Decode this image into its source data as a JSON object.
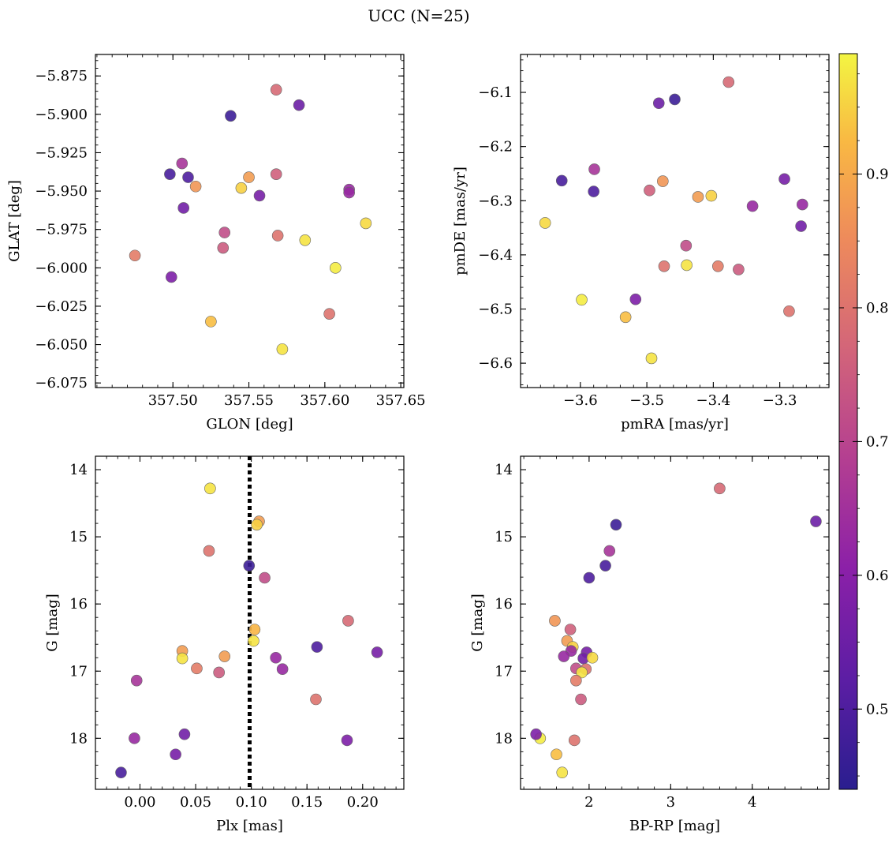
{
  "title": "UCC (N=25)",
  "colorbar": {
    "range": [
      0.44,
      0.99
    ],
    "ticks": [
      "0.5",
      "0.6",
      "0.7",
      "0.8",
      "0.9"
    ],
    "tick_values": [
      0.5,
      0.6,
      0.7,
      0.8,
      0.9
    ],
    "colormap": "plasma"
  },
  "chart_data": [
    {
      "type": "scatter",
      "xlabel": "GLON [deg]",
      "ylabel": "GLAT [deg]",
      "xlim": [
        357.449,
        357.652
      ],
      "ylim": [
        -6.078,
        -5.861
      ],
      "y_inverted": false,
      "xticks": [
        357.5,
        357.55,
        357.6,
        357.65
      ],
      "xtick_labels": [
        "357.50",
        "357.55",
        "357.60",
        "357.65"
      ],
      "yticks": [
        -5.875,
        -5.9,
        -5.925,
        -5.95,
        -5.975,
        -6.0,
        -6.025,
        -6.05,
        -6.075
      ],
      "ytick_labels": [
        "−5.875",
        "−5.900",
        "−5.925",
        "−5.950",
        "−5.975",
        "−6.000",
        "−6.025",
        "−6.050",
        "−6.075"
      ],
      "x": [
        357.568,
        357.583,
        357.538,
        357.506,
        357.498,
        357.51,
        357.515,
        357.568,
        357.55,
        357.545,
        357.557,
        357.616,
        357.616,
        357.507,
        357.627,
        357.534,
        357.569,
        357.587,
        357.475,
        357.533,
        357.607,
        357.499,
        357.603,
        357.525,
        357.572
      ],
      "y": [
        -5.884,
        -5.894,
        -5.901,
        -5.932,
        -5.939,
        -5.941,
        -5.947,
        -5.939,
        -5.941,
        -5.948,
        -5.953,
        -5.949,
        -5.951,
        -5.961,
        -5.971,
        -5.977,
        -5.979,
        -5.982,
        -5.992,
        -5.987,
        -6.0,
        -6.006,
        -6.03,
        -6.035,
        -6.053
      ]
    },
    {
      "type": "scatter",
      "xlabel": "pmRA [mas/yr]",
      "ylabel": "pmDE [mas/yr]",
      "xlim": [
        -3.69,
        -3.226
      ],
      "ylim": [
        -6.645,
        -6.03
      ],
      "y_inverted": false,
      "xticks": [
        -3.6,
        -3.5,
        -3.4,
        -3.3
      ],
      "xtick_labels": [
        "−3.6",
        "−3.5",
        "−3.4",
        "−3.3"
      ],
      "yticks": [
        -6.1,
        -6.2,
        -6.3,
        -6.4,
        -6.5,
        -6.6
      ],
      "ytick_labels": [
        "−6.1",
        "−6.2",
        "−6.3",
        "−6.4",
        "−6.5",
        "−6.6"
      ],
      "x": [
        -3.377,
        -3.482,
        -3.458,
        -3.579,
        -3.628,
        -3.58,
        -3.476,
        -3.496,
        -3.423,
        -3.403,
        -3.293,
        -3.341,
        -3.266,
        -3.268,
        -3.653,
        -3.441,
        -3.474,
        -3.44,
        -3.393,
        -3.362,
        -3.598,
        -3.517,
        -3.286,
        -3.532,
        -3.493
      ],
      "y": [
        -6.081,
        -6.12,
        -6.113,
        -6.242,
        -6.263,
        -6.283,
        -6.264,
        -6.281,
        -6.293,
        -6.291,
        -6.26,
        -6.31,
        -6.307,
        -6.347,
        -6.341,
        -6.383,
        -6.421,
        -6.419,
        -6.421,
        -6.427,
        -6.483,
        -6.482,
        -6.504,
        -6.515,
        -6.591
      ]
    },
    {
      "type": "scatter",
      "xlabel": "Plx [mas]",
      "ylabel": "G [mag]",
      "xlim": [
        -0.04,
        0.237
      ],
      "ylim": [
        18.76,
        13.8
      ],
      "y_inverted": true,
      "xticks": [
        0.0,
        0.05,
        0.1,
        0.15,
        0.2
      ],
      "xtick_labels": [
        "0.00",
        "0.05",
        "0.10",
        "0.15",
        "0.20"
      ],
      "yticks": [
        14,
        15,
        16,
        17,
        18
      ],
      "ytick_labels": [
        "14",
        "15",
        "16",
        "17",
        "18"
      ],
      "vline": 0.0985,
      "x": [
        0.063,
        0.107,
        0.105,
        0.062,
        0.098,
        0.112,
        0.187,
        0.103,
        0.102,
        0.159,
        0.213,
        0.038,
        0.076,
        0.038,
        0.122,
        0.051,
        0.128,
        0.071,
        -0.003,
        0.158,
        -0.005,
        0.04,
        0.186,
        0.032,
        -0.017
      ],
      "y": [
        14.28,
        14.77,
        14.82,
        15.21,
        15.43,
        15.61,
        16.25,
        16.38,
        16.55,
        16.64,
        16.72,
        16.7,
        16.78,
        16.81,
        16.8,
        16.96,
        16.97,
        17.02,
        17.14,
        17.42,
        18.0,
        17.94,
        18.03,
        18.24,
        18.51
      ]
    },
    {
      "type": "scatter",
      "xlabel": "BP-RP [mag]",
      "ylabel": "G [mag]",
      "xlim": [
        1.16,
        4.94
      ],
      "ylim": [
        18.76,
        13.8
      ],
      "y_inverted": true,
      "xticks": [
        2,
        3,
        4
      ],
      "xtick_labels": [
        "2",
        "3",
        "4"
      ],
      "yticks": [
        14,
        15,
        16,
        17,
        18
      ],
      "ytick_labels": [
        "14",
        "15",
        "16",
        "17",
        "18"
      ],
      "x": [
        3.6,
        4.78,
        2.33,
        2.25,
        2.2,
        2.0,
        1.58,
        1.77,
        1.73,
        1.8,
        1.97,
        1.78,
        1.69,
        1.93,
        2.04,
        1.84,
        1.96,
        1.91,
        1.84,
        1.9,
        1.4,
        1.35,
        1.82,
        1.6,
        1.67
      ],
      "y": [
        14.28,
        14.77,
        14.82,
        15.21,
        15.43,
        15.61,
        16.25,
        16.38,
        16.55,
        16.64,
        16.72,
        16.7,
        16.78,
        16.81,
        16.8,
        16.96,
        16.97,
        17.02,
        17.14,
        17.42,
        18.0,
        17.94,
        18.03,
        18.24,
        18.51
      ]
    }
  ],
  "star_probabilities": [
    0.78,
    0.55,
    0.47,
    0.66,
    0.49,
    0.5,
    0.87,
    0.76,
    0.88,
    0.95,
    0.57,
    0.63,
    0.63,
    0.56,
    0.96,
    0.72,
    0.8,
    0.97,
    0.82,
    0.75,
    0.98,
    0.58,
    0.8,
    0.93,
    0.97
  ],
  "plx_star_probabilities": [
    0.97,
    0.88,
    0.95,
    0.8,
    0.47,
    0.72,
    0.78,
    0.92,
    0.97,
    0.5,
    0.57,
    0.88,
    0.88,
    0.97,
    0.63,
    0.82,
    0.63,
    0.75,
    0.66,
    0.8,
    0.63,
    0.56,
    0.58,
    0.57,
    0.49
  ]
}
